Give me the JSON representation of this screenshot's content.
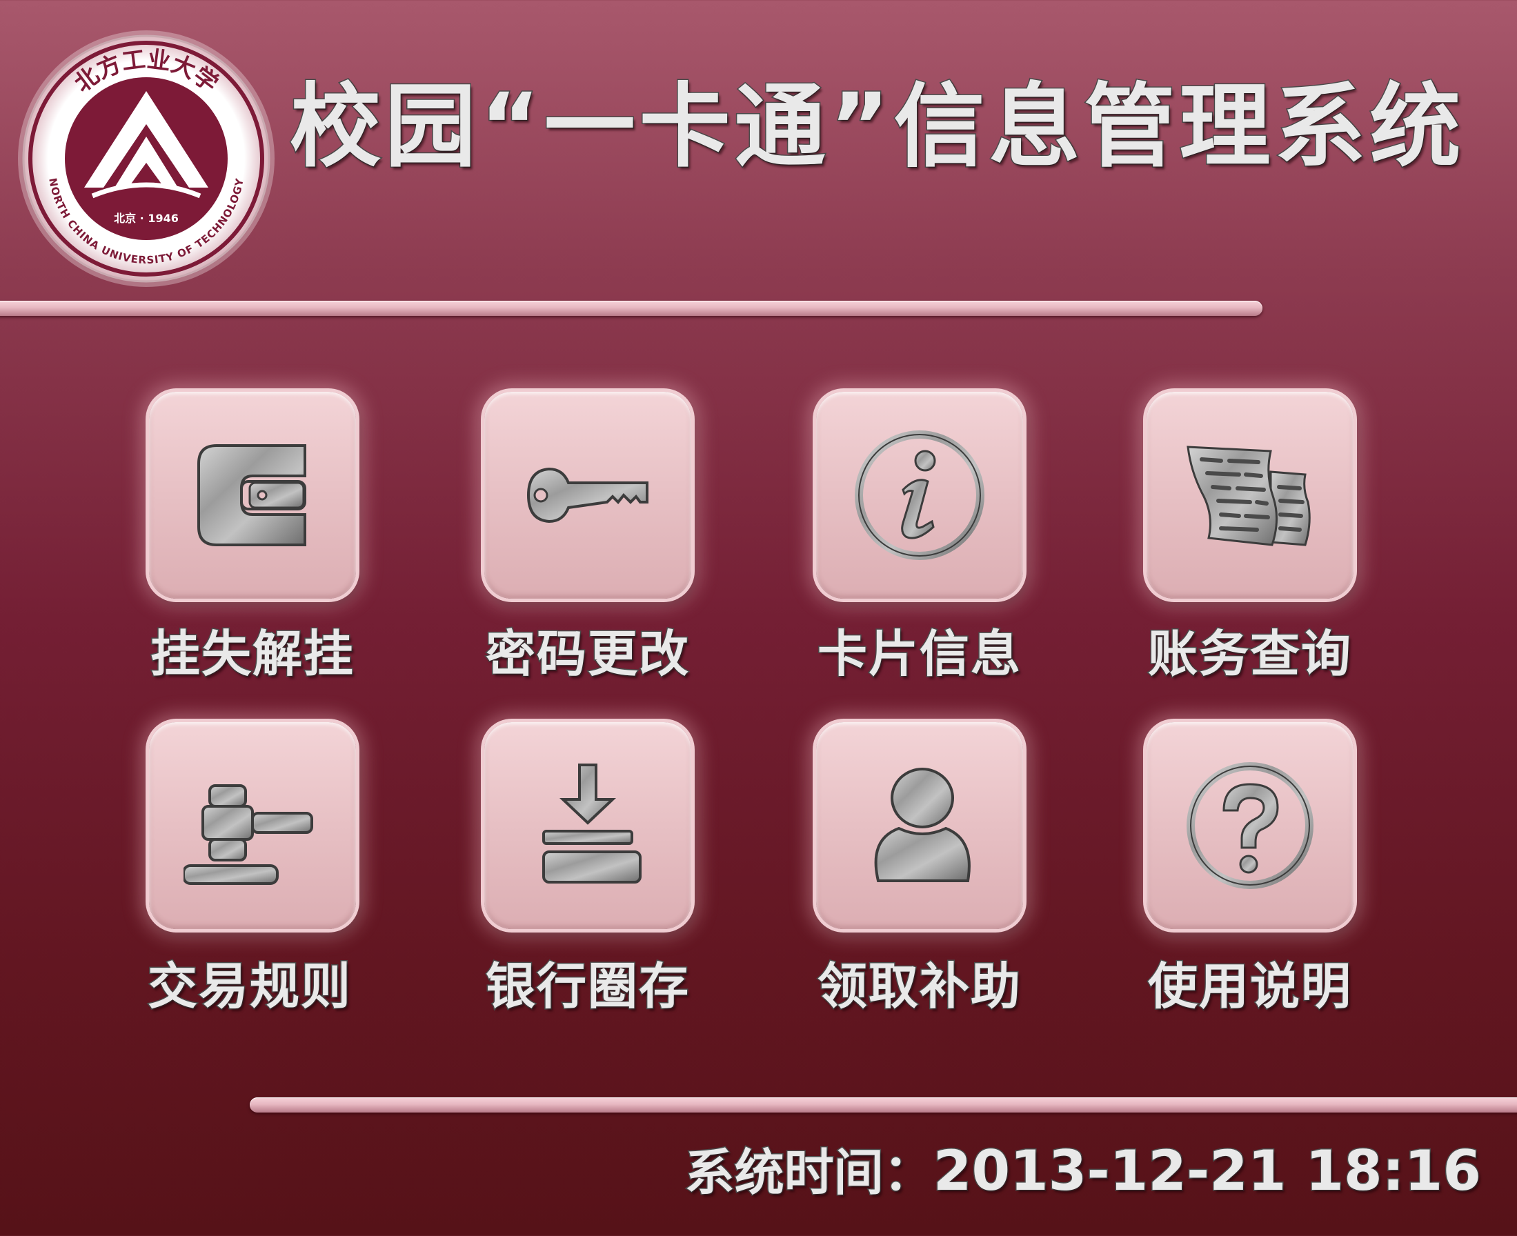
{
  "app_title": "校园“一卡通”信息管理系统",
  "logo": {
    "icon": "university-seal-icon",
    "seal_text_top": "北方工业大学",
    "seal_text_bottom": "NORTH CHINA UNIVERSITY OF TECHNOLOGY",
    "seal_text_year": "北京 · 1946"
  },
  "menu": [
    {
      "label": "挂失解挂",
      "icon": "card-lock-icon"
    },
    {
      "label": "密码更改",
      "icon": "key-icon"
    },
    {
      "label": "卡片信息",
      "icon": "info-icon"
    },
    {
      "label": "账务查询",
      "icon": "document-pages-icon"
    },
    {
      "label": "交易规则",
      "icon": "gavel-icon"
    },
    {
      "label": "银行圈存",
      "icon": "download-tray-icon"
    },
    {
      "label": "领取补助",
      "icon": "user-icon"
    },
    {
      "label": "使用说明",
      "icon": "help-icon"
    }
  ],
  "status": {
    "time_label": "系统时间：",
    "time_value": "2013-12-21 18:16"
  },
  "colors": {
    "background_top": "#a8586c",
    "background_bottom": "#561218",
    "tile": "#e7c0c4",
    "metal": "#9a9a9a"
  }
}
